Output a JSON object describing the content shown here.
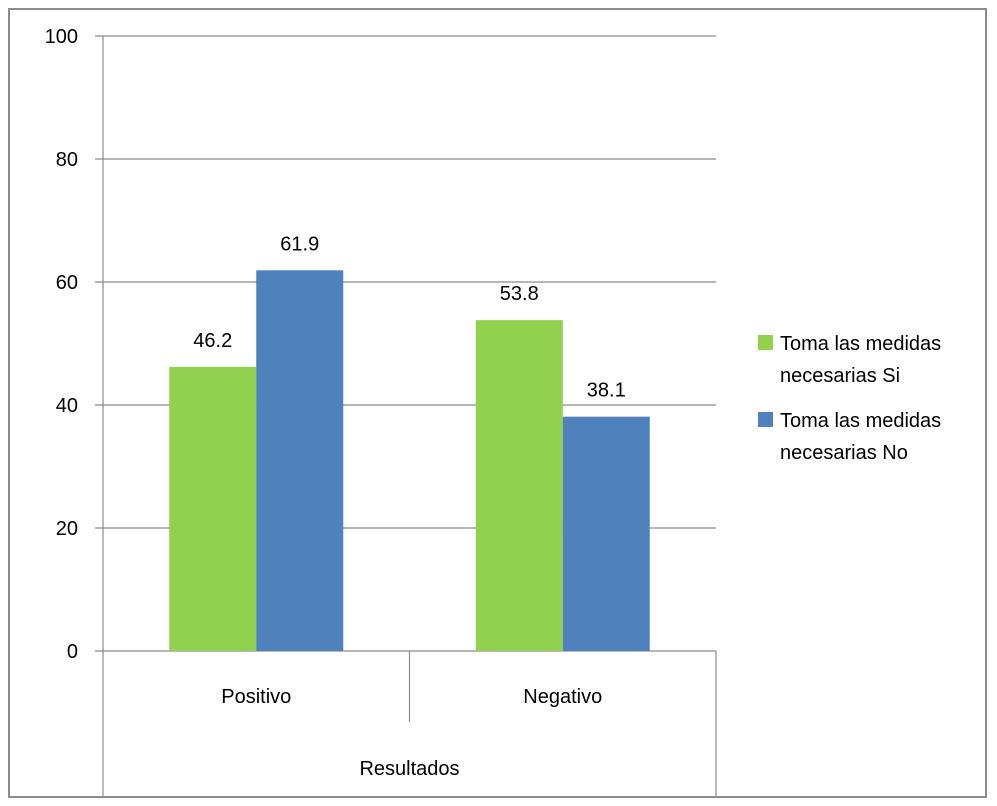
{
  "chart_data": {
    "type": "bar",
    "categories": [
      "Positivo",
      "Negativo"
    ],
    "group_label": "Resultados",
    "series": [
      {
        "name": "Toma las medidas necesarias Si",
        "values": [
          46.2,
          53.8
        ],
        "color": "#92d050"
      },
      {
        "name": "Toma las medidas necesarias No",
        "values": [
          61.9,
          38.1
        ],
        "color": "#4f81bd"
      }
    ],
    "ylim": [
      0,
      100
    ],
    "yticks": [
      0,
      20,
      40,
      60,
      80,
      100
    ],
    "grid": true,
    "legend_position": "right",
    "legend_lines": [
      [
        "Toma las medidas",
        "necesarias Si"
      ],
      [
        "Toma las medidas",
        "necesarias No"
      ]
    ]
  }
}
